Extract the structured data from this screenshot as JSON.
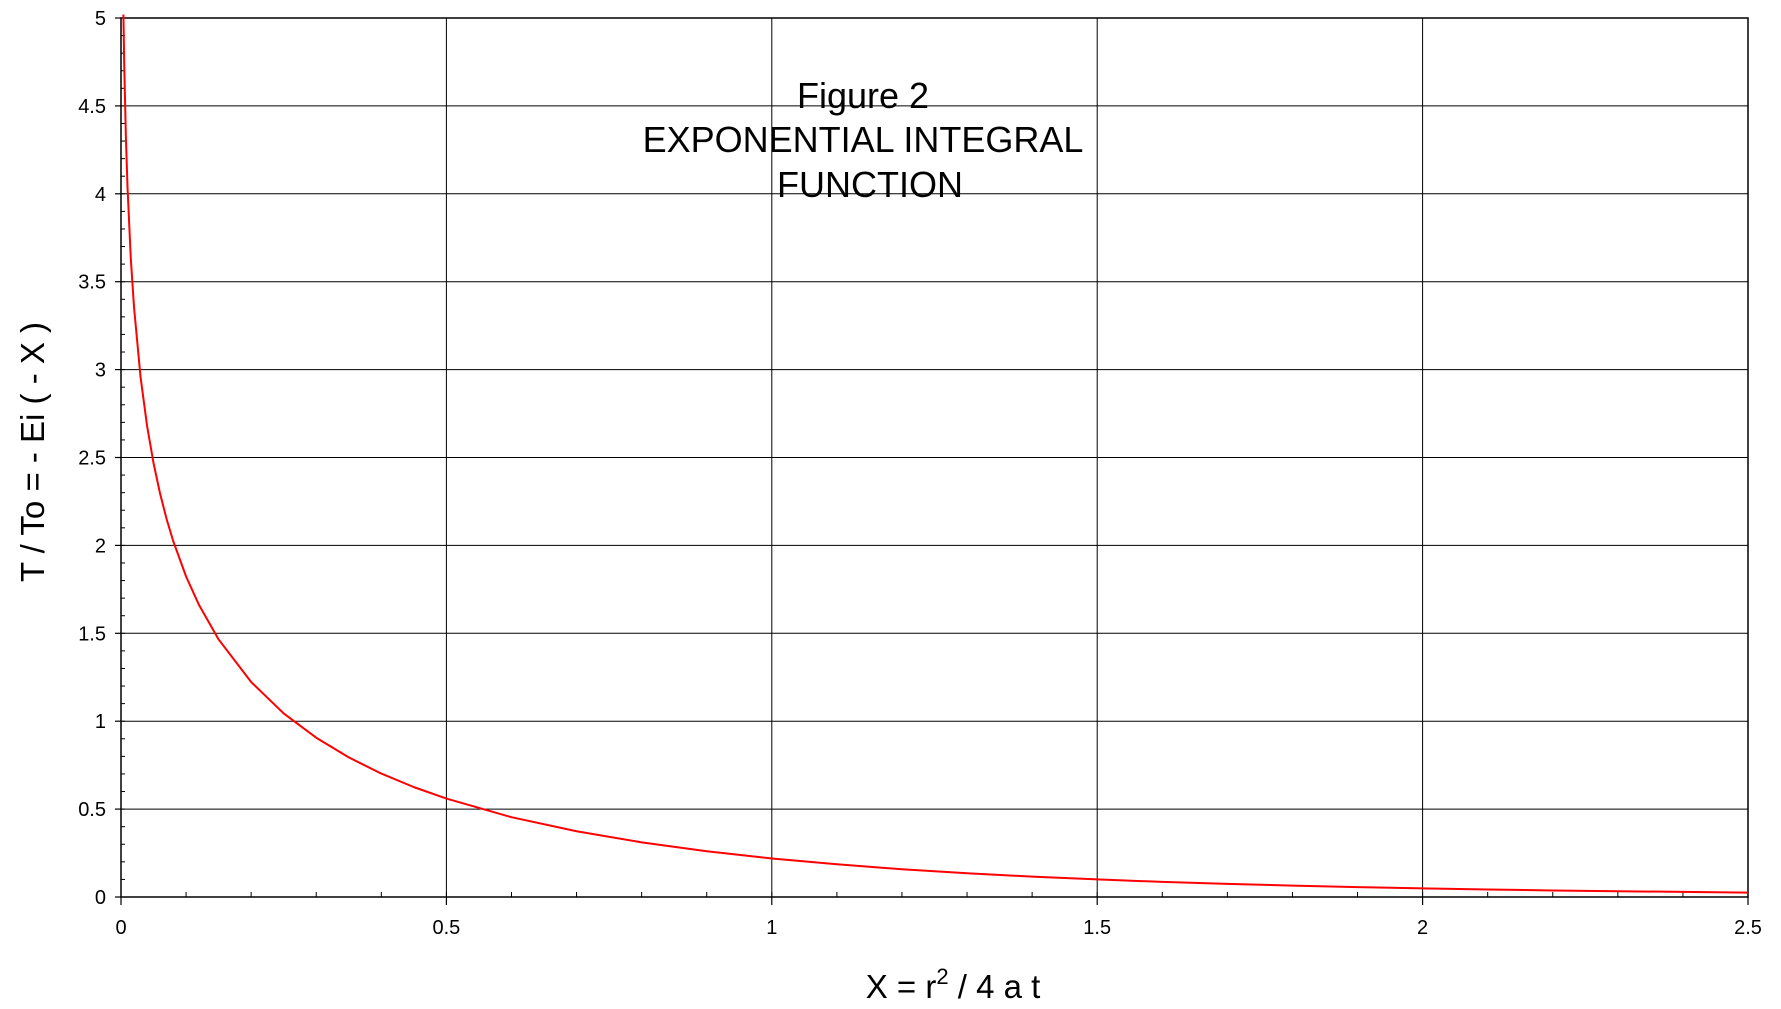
{
  "chart_data": {
    "type": "line",
    "title": [
      "Figure 2",
      "EXPONENTIAL INTEGRAL",
      "FUNCTION"
    ],
    "xlabel": {
      "prefix": "X  =  r",
      "superscript": "2",
      "suffix": " / 4 a t"
    },
    "ylabel": "T / To   = - Ei ( - X )",
    "xlim": [
      0,
      2.5
    ],
    "ylim": [
      0,
      5
    ],
    "xticks": [
      "0",
      "0.5",
      "1",
      "1.5",
      "2",
      "2.5"
    ],
    "yticks": [
      "0",
      "0.5",
      "1",
      "1.5",
      "2",
      "2.5",
      "3",
      "3.5",
      "4",
      "4.5",
      "5"
    ],
    "grid": true,
    "series": [
      {
        "color": "#ff0000",
        "x": [
          0.0037,
          0.005,
          0.0075,
          0.01,
          0.015,
          0.02,
          0.03,
          0.04,
          0.05,
          0.06,
          0.07,
          0.08,
          0.1,
          0.12,
          0.15,
          0.2,
          0.25,
          0.3,
          0.35,
          0.4,
          0.45,
          0.5,
          0.6,
          0.7,
          0.8,
          0.9,
          1.0,
          1.1,
          1.2,
          1.3,
          1.4,
          1.5,
          1.6,
          1.7,
          1.8,
          1.9,
          2.0,
          2.1,
          2.2,
          2.3,
          2.4,
          2.5
        ],
        "y": [
          5.02,
          4.726,
          4.324,
          4.038,
          3.636,
          3.355,
          2.959,
          2.681,
          2.468,
          2.295,
          2.151,
          2.027,
          1.823,
          1.66,
          1.465,
          1.223,
          1.044,
          0.906,
          0.794,
          0.702,
          0.625,
          0.56,
          0.454,
          0.374,
          0.311,
          0.26,
          0.219,
          0.186,
          0.158,
          0.135,
          0.116,
          0.1,
          0.086,
          0.075,
          0.065,
          0.056,
          0.049,
          0.043,
          0.037,
          0.033,
          0.029,
          0.025
        ]
      }
    ]
  }
}
